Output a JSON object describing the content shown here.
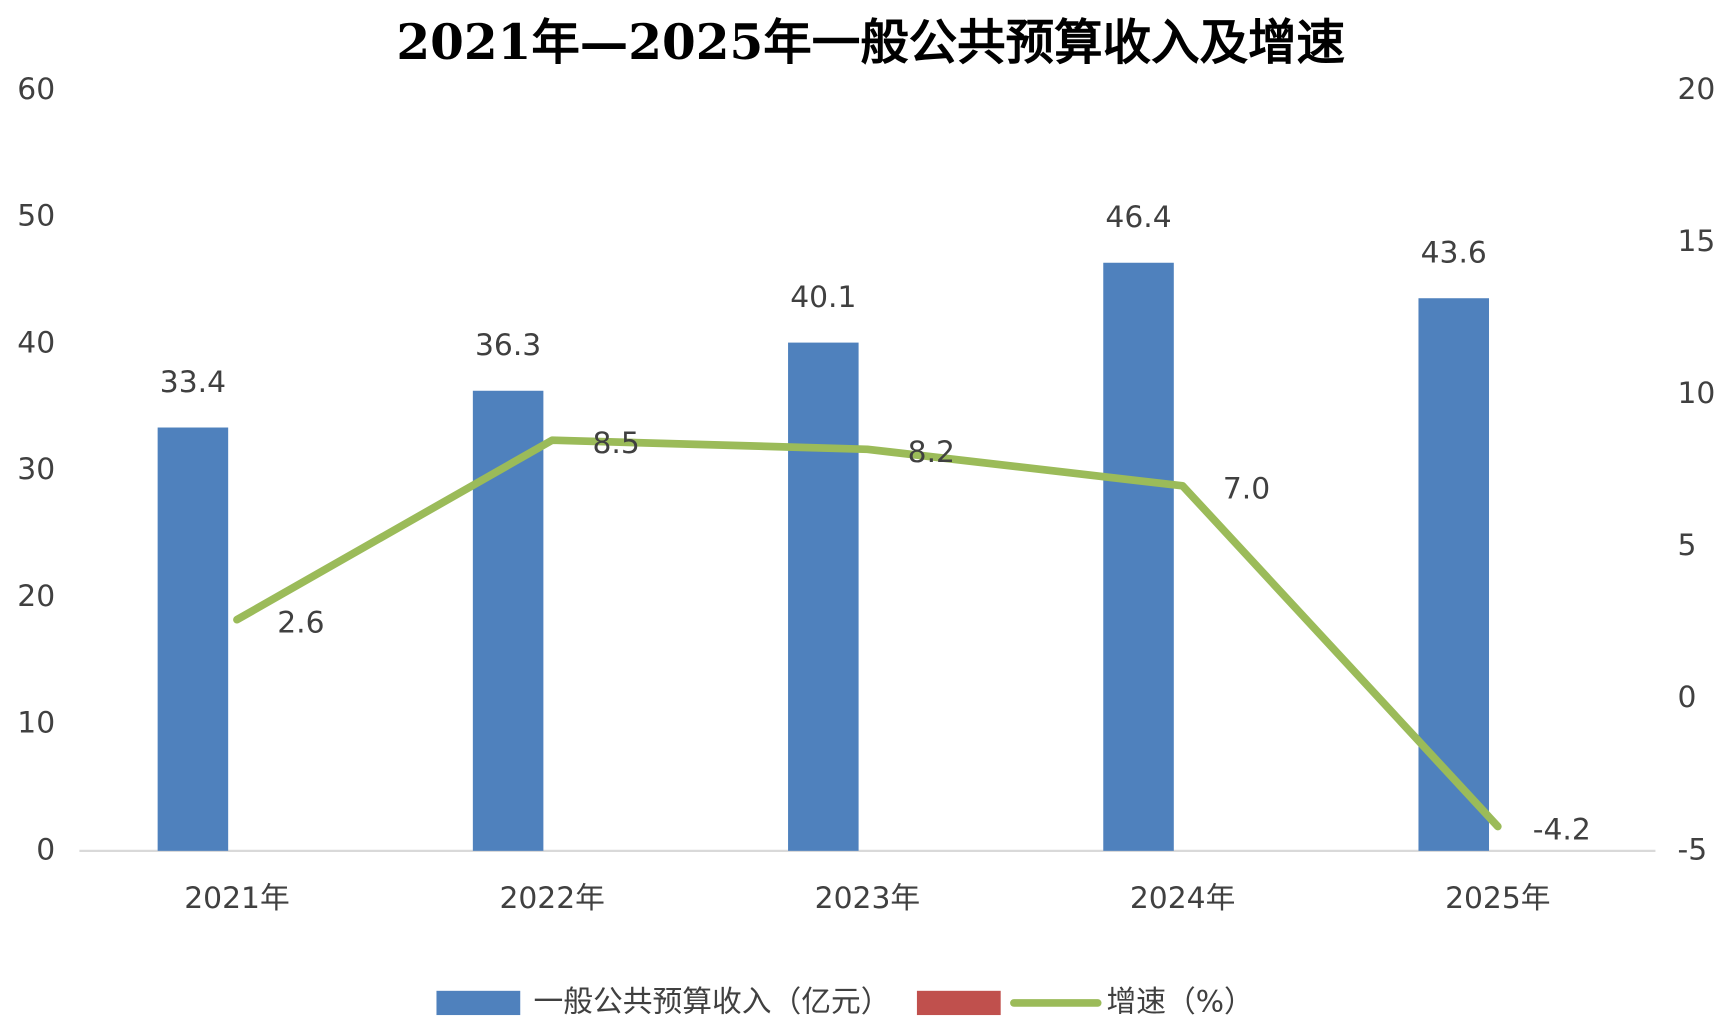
{
  "chart_data": {
    "type": "bar",
    "title": "2021年—2025年一般公共预算收入及增速",
    "categories": [
      "2021年",
      "2022年",
      "2023年",
      "2024年",
      "2025年"
    ],
    "series": [
      {
        "name": "一般公共预算收入（亿元）",
        "color": "#4f81bd",
        "type": "bar",
        "values": [
          33.4,
          36.3,
          40.1,
          46.4,
          43.6
        ]
      },
      {
        "name": null,
        "color": "#c0504d",
        "type": "bar",
        "values": [
          null,
          null,
          null,
          null,
          null
        ]
      },
      {
        "name": "增速（%）",
        "color": "#9bbb59",
        "type": "line",
        "axis": "y2",
        "values": [
          2.6,
          8.5,
          8.2,
          7.0,
          -4.2
        ],
        "value_labels": [
          "2.6",
          "8.5",
          "8.2",
          "7.0",
          "-4.2"
        ]
      }
    ],
    "ylim": [
      0,
      60
    ],
    "yticks": [
      0,
      10,
      20,
      30,
      40,
      50,
      60
    ],
    "y2lim": [
      -5,
      20
    ],
    "y2ticks": [
      -5,
      0,
      5,
      10,
      15,
      20
    ],
    "legend": "bottom"
  }
}
